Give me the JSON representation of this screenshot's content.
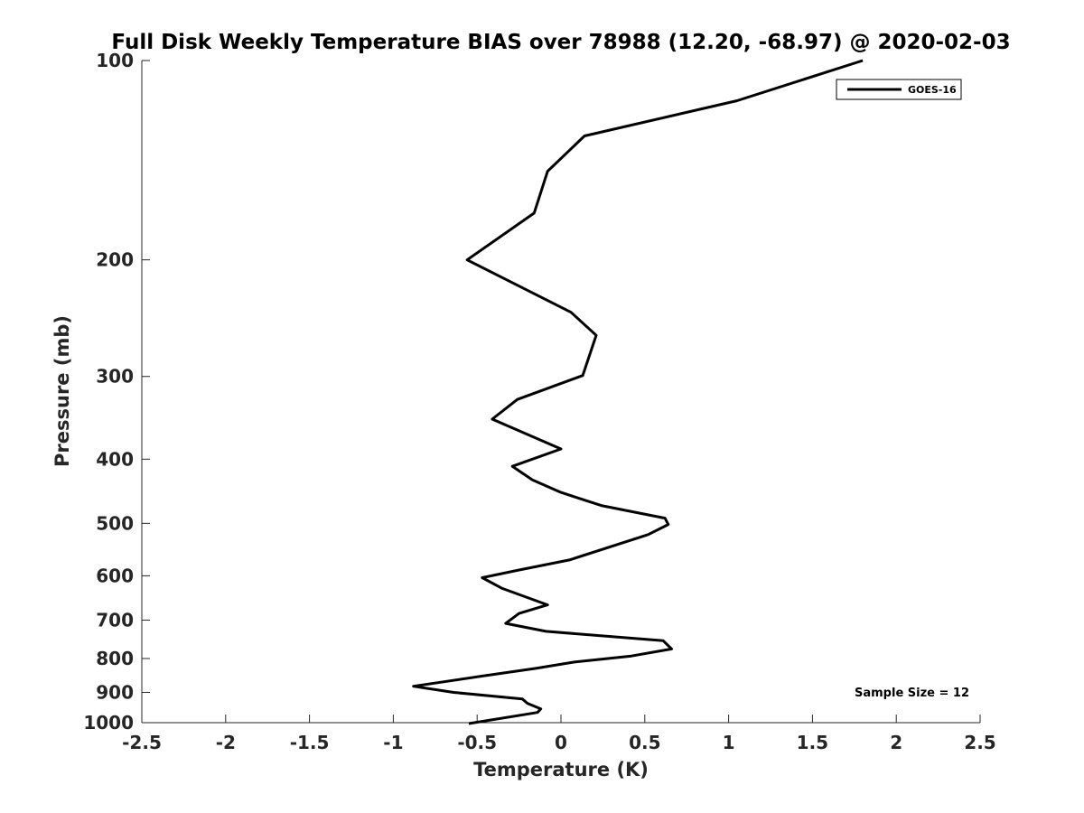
{
  "chart_data": {
    "type": "line",
    "title": "Full Disk Weekly Temperature BIAS over 78988 (12.20, -68.97) @ 2020-02-03",
    "xlabel": "Temperature (K)",
    "ylabel": "Pressure (mb)",
    "xlim": [
      -2.5,
      2.5
    ],
    "ylim": [
      100,
      1000
    ],
    "yscale": "log",
    "y_reversed": true,
    "grid": false,
    "legend_position": "top-right",
    "x_ticks": [
      -2.5,
      -2,
      -1.5,
      -1,
      -0.5,
      0,
      0.5,
      1,
      1.5,
      2,
      2.5
    ],
    "x_tick_labels": [
      "-2.5",
      "-2",
      "-1.5",
      "-1",
      "-0.5",
      "0",
      "0.5",
      "1",
      "1.5",
      "2",
      "2.5"
    ],
    "y_ticks": [
      100,
      200,
      300,
      400,
      500,
      600,
      700,
      800,
      900,
      1000
    ],
    "y_tick_labels": [
      "100",
      "200",
      "300",
      "400",
      "500",
      "600",
      "700",
      "800",
      "900",
      "1000"
    ],
    "series": [
      {
        "name": "GOES-16",
        "color": "#000000",
        "points": [
          {
            "x": 1.8,
            "y": 100
          },
          {
            "x": 1.05,
            "y": 115
          },
          {
            "x": 0.14,
            "y": 130
          },
          {
            "x": -0.08,
            "y": 147
          },
          {
            "x": -0.16,
            "y": 170
          },
          {
            "x": -0.56,
            "y": 200
          },
          {
            "x": 0.06,
            "y": 240
          },
          {
            "x": 0.21,
            "y": 260
          },
          {
            "x": 0.13,
            "y": 299
          },
          {
            "x": -0.26,
            "y": 325
          },
          {
            "x": -0.41,
            "y": 348
          },
          {
            "x": 0.0,
            "y": 386
          },
          {
            "x": -0.29,
            "y": 410
          },
          {
            "x": -0.17,
            "y": 430
          },
          {
            "x": 0.0,
            "y": 449
          },
          {
            "x": 0.24,
            "y": 470
          },
          {
            "x": 0.62,
            "y": 491
          },
          {
            "x": 0.64,
            "y": 502
          },
          {
            "x": 0.52,
            "y": 520
          },
          {
            "x": 0.05,
            "y": 568
          },
          {
            "x": -0.25,
            "y": 588
          },
          {
            "x": -0.47,
            "y": 604
          },
          {
            "x": -0.35,
            "y": 627
          },
          {
            "x": -0.08,
            "y": 664
          },
          {
            "x": -0.25,
            "y": 684
          },
          {
            "x": -0.33,
            "y": 708
          },
          {
            "x": -0.09,
            "y": 728
          },
          {
            "x": 0.61,
            "y": 752
          },
          {
            "x": 0.66,
            "y": 774
          },
          {
            "x": 0.42,
            "y": 793
          },
          {
            "x": 0.08,
            "y": 810
          },
          {
            "x": -0.15,
            "y": 828
          },
          {
            "x": -0.45,
            "y": 849
          },
          {
            "x": -0.88,
            "y": 881
          },
          {
            "x": -0.64,
            "y": 900
          },
          {
            "x": -0.23,
            "y": 921
          },
          {
            "x": -0.2,
            "y": 935
          },
          {
            "x": -0.12,
            "y": 953
          },
          {
            "x": -0.14,
            "y": 965
          },
          {
            "x": -0.55,
            "y": 1003
          }
        ]
      }
    ],
    "annotations": [
      {
        "text": "Sample Size = 12"
      }
    ]
  }
}
